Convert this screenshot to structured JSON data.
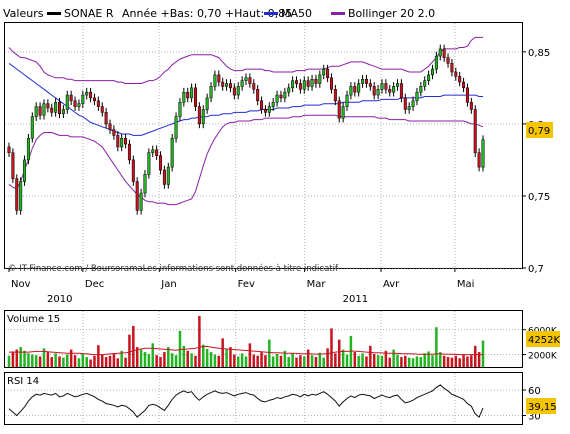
{
  "colors": {
    "up": "#22b422",
    "down": "#c8141e",
    "ma50": "#1f2dd2",
    "bollinger": "#8a1fa8",
    "volume_avg": "#c8141e",
    "rsi": "#111111",
    "grid": "#b4b4b4",
    "last_badge": "#f5c400"
  },
  "header": {
    "prefix": "Valeurs",
    "security": "SONAE R",
    "stats": "Année +Bas: 0,70 +Haut: 0,85",
    "legend_ma": "MA50",
    "legend_bollinger": "Bollinger 20 2.0"
  },
  "credit": "© IT-Finance.com / BoursoramaLes informations sont données à titre indicatif",
  "months": [
    {
      "label": "Nov",
      "year": "2010",
      "day": 0
    },
    {
      "label": "Dec",
      "year": "",
      "day": 30
    },
    {
      "label": "Jan",
      "year": "",
      "day": 61
    },
    {
      "label": "Fev",
      "year": "",
      "day": 92
    },
    {
      "label": "Mar",
      "year": "2011",
      "day": 120
    },
    {
      "label": "Avr",
      "year": "",
      "day": 151
    },
    {
      "label": "Mai",
      "year": "",
      "day": 181
    }
  ],
  "chart_data": [
    {
      "type": "candlestick",
      "title": "SONAE R",
      "subtitle": "Année +Bas: 0,70 +Haut: 0,85",
      "x_range_days": [
        0,
        205
      ],
      "ylim": [
        0.7,
        0.87
      ],
      "y_ticks": [
        {
          "v": 0.85,
          "label": "0,85"
        },
        {
          "v": 0.8,
          "label": "0,8"
        },
        {
          "v": 0.75,
          "label": "0,75"
        },
        {
          "v": 0.7,
          "label": "0,7"
        }
      ],
      "last_value": {
        "v": 0.79,
        "label": "0,79"
      },
      "close": [
        0.78,
        0.762,
        0.74,
        0.76,
        0.775,
        0.79,
        0.805,
        0.812,
        0.806,
        0.814,
        0.811,
        0.808,
        0.815,
        0.807,
        0.81,
        0.82,
        0.816,
        0.812,
        0.814,
        0.82,
        0.822,
        0.818,
        0.816,
        0.812,
        0.808,
        0.8,
        0.796,
        0.792,
        0.784,
        0.79,
        0.786,
        0.775,
        0.76,
        0.74,
        0.752,
        0.765,
        0.78,
        0.782,
        0.778,
        0.768,
        0.758,
        0.77,
        0.79,
        0.805,
        0.815,
        0.822,
        0.818,
        0.825,
        0.812,
        0.8,
        0.81,
        0.818,
        0.826,
        0.834,
        0.829,
        0.826,
        0.828,
        0.825,
        0.82,
        0.826,
        0.83,
        0.832,
        0.828,
        0.824,
        0.816,
        0.81,
        0.808,
        0.812,
        0.815,
        0.82,
        0.818,
        0.822,
        0.825,
        0.83,
        0.828,
        0.824,
        0.83,
        0.826,
        0.831,
        0.828,
        0.834,
        0.838,
        0.832,
        0.824,
        0.816,
        0.804,
        0.812,
        0.82,
        0.826,
        0.822,
        0.828,
        0.831,
        0.828,
        0.826,
        0.82,
        0.824,
        0.828,
        0.824,
        0.822,
        0.826,
        0.828,
        0.818,
        0.81,
        0.812,
        0.816,
        0.822,
        0.826,
        0.83,
        0.834,
        0.838,
        0.847,
        0.852,
        0.846,
        0.842,
        0.836,
        0.833,
        0.829,
        0.825,
        0.815,
        0.81,
        0.78,
        0.77,
        0.789
      ],
      "ma50": [
        0.842,
        0.84,
        0.838,
        0.836,
        0.834,
        0.832,
        0.83,
        0.828,
        0.826,
        0.824,
        0.822,
        0.82,
        0.818,
        0.816,
        0.814,
        0.812,
        0.81,
        0.808,
        0.806,
        0.805,
        0.803,
        0.801,
        0.8,
        0.799,
        0.798,
        0.797,
        0.796,
        0.795,
        0.794,
        0.793,
        0.793,
        0.793,
        0.792,
        0.792,
        0.792,
        0.793,
        0.794,
        0.795,
        0.796,
        0.797,
        0.798,
        0.799,
        0.8,
        0.801,
        0.802,
        0.803,
        0.803,
        0.804,
        0.804,
        0.805,
        0.805,
        0.805,
        0.806,
        0.806,
        0.806,
        0.807,
        0.807,
        0.807,
        0.808,
        0.808,
        0.808,
        0.808,
        0.809,
        0.809,
        0.809,
        0.81,
        0.81,
        0.81,
        0.81,
        0.811,
        0.811,
        0.811,
        0.811,
        0.812,
        0.812,
        0.812,
        0.813,
        0.813,
        0.813,
        0.813,
        0.813,
        0.814,
        0.814,
        0.814,
        0.814,
        0.814,
        0.815,
        0.815,
        0.815,
        0.815,
        0.815,
        0.816,
        0.816,
        0.816,
        0.816,
        0.816,
        0.817,
        0.817,
        0.817,
        0.817,
        0.817,
        0.818,
        0.818,
        0.818,
        0.818,
        0.818,
        0.818,
        0.819,
        0.819,
        0.819,
        0.819,
        0.819,
        0.82,
        0.82,
        0.82,
        0.82,
        0.82,
        0.82,
        0.82,
        0.82,
        0.82,
        0.819,
        0.819
      ],
      "boll_upper": [
        0.853,
        0.85,
        0.848,
        0.846,
        0.846,
        0.845,
        0.844,
        0.843,
        0.84,
        0.836,
        0.834,
        0.833,
        0.832,
        0.832,
        0.832,
        0.831,
        0.831,
        0.83,
        0.83,
        0.83,
        0.83,
        0.83,
        0.83,
        0.83,
        0.83,
        0.83,
        0.83,
        0.83,
        0.829,
        0.829,
        0.828,
        0.828,
        0.828,
        0.828,
        0.828,
        0.829,
        0.83,
        0.83,
        0.831,
        0.833,
        0.836,
        0.838,
        0.841,
        0.843,
        0.845,
        0.846,
        0.847,
        0.848,
        0.848,
        0.848,
        0.848,
        0.848,
        0.848,
        0.847,
        0.846,
        0.843,
        0.84,
        0.838,
        0.837,
        0.837,
        0.837,
        0.838,
        0.838,
        0.838,
        0.838,
        0.838,
        0.837,
        0.837,
        0.836,
        0.836,
        0.836,
        0.836,
        0.836,
        0.836,
        0.837,
        0.837,
        0.837,
        0.838,
        0.838,
        0.838,
        0.838,
        0.838,
        0.839,
        0.84,
        0.84,
        0.84,
        0.841,
        0.842,
        0.843,
        0.843,
        0.843,
        0.843,
        0.842,
        0.841,
        0.84,
        0.839,
        0.838,
        0.838,
        0.838,
        0.838,
        0.838,
        0.838,
        0.837,
        0.836,
        0.836,
        0.836,
        0.836,
        0.838,
        0.84,
        0.843,
        0.846,
        0.85,
        0.852,
        0.852,
        0.852,
        0.852,
        0.853,
        0.853,
        0.854,
        0.858,
        0.86,
        0.86,
        0.86
      ],
      "boll_lower": [
        0.758,
        0.756,
        0.755,
        0.76,
        0.768,
        0.775,
        0.783,
        0.789,
        0.792,
        0.794,
        0.794,
        0.794,
        0.793,
        0.792,
        0.792,
        0.792,
        0.791,
        0.791,
        0.791,
        0.791,
        0.79,
        0.789,
        0.788,
        0.786,
        0.784,
        0.78,
        0.776,
        0.772,
        0.768,
        0.764,
        0.76,
        0.757,
        0.754,
        0.751,
        0.749,
        0.747,
        0.746,
        0.746,
        0.745,
        0.745,
        0.745,
        0.744,
        0.744,
        0.744,
        0.745,
        0.746,
        0.747,
        0.748,
        0.753,
        0.762,
        0.771,
        0.779,
        0.785,
        0.79,
        0.794,
        0.798,
        0.8,
        0.801,
        0.801,
        0.802,
        0.802,
        0.802,
        0.802,
        0.803,
        0.803,
        0.803,
        0.804,
        0.804,
        0.804,
        0.804,
        0.804,
        0.804,
        0.804,
        0.805,
        0.805,
        0.805,
        0.806,
        0.806,
        0.806,
        0.806,
        0.806,
        0.806,
        0.806,
        0.806,
        0.806,
        0.805,
        0.805,
        0.805,
        0.805,
        0.805,
        0.805,
        0.805,
        0.805,
        0.805,
        0.805,
        0.804,
        0.804,
        0.804,
        0.803,
        0.803,
        0.803,
        0.803,
        0.803,
        0.802,
        0.802,
        0.802,
        0.802,
        0.802,
        0.802,
        0.802,
        0.802,
        0.802,
        0.802,
        0.802,
        0.802,
        0.802,
        0.802,
        0.802,
        0.801,
        0.8,
        0.8,
        0.799,
        0.798
      ]
    },
    {
      "type": "bar",
      "title": "Volume 15",
      "ylim": [
        0,
        9000
      ],
      "y_ticks": [
        {
          "v": 6000,
          "label": "6000K"
        },
        {
          "v": 2000,
          "label": "2000K"
        }
      ],
      "last_value": {
        "v": 4252,
        "label": "4252K"
      },
      "values": [
        1800,
        2500,
        2800,
        3200,
        2600,
        2200,
        2000,
        1900,
        1700,
        3000,
        2400,
        1600,
        2200,
        1700,
        1500,
        2000,
        2800,
        1900,
        1400,
        2200,
        1600,
        1200,
        1800,
        3500,
        2000,
        1600,
        1800,
        2200,
        1400,
        2600,
        1500,
        5200,
        6600,
        3200,
        2800,
        2400,
        2100,
        3800,
        1900,
        1600,
        2400,
        3200,
        2200,
        1900,
        5800,
        3400,
        2600,
        2200,
        1800,
        8200,
        3600,
        2900,
        2400,
        2000,
        1800,
        4600,
        2800,
        3200,
        2000,
        1700,
        2200,
        1700,
        3800,
        2000,
        1800,
        2400,
        1900,
        4400,
        1700,
        2100,
        1800,
        2600,
        1600,
        2200,
        1500,
        1900,
        1700,
        2800,
        1900,
        1600,
        2300,
        1500,
        3000,
        6200,
        2200,
        4400,
        2800,
        2000,
        5000,
        2400,
        1800,
        2200,
        1700,
        3400,
        2100,
        1900,
        1800,
        2600,
        1500,
        2800,
        2000,
        1600,
        1800,
        1500,
        1400,
        1700,
        1600,
        2200,
        2500,
        1900,
        6400,
        2400,
        1800,
        1600,
        1500,
        1800,
        1400,
        2000,
        1700,
        1900,
        3400,
        2400,
        4252
      ],
      "average": [
        2400,
        2400,
        2400,
        2400,
        2400,
        2400,
        2450,
        2500,
        2500,
        2500,
        2450,
        2400,
        2350,
        2300,
        2250,
        2200,
        2200,
        2200,
        2200,
        2150,
        2100,
        2050,
        2000,
        2000,
        2000,
        2050,
        2100,
        2150,
        2200,
        2250,
        2300,
        2400,
        2600,
        2800,
        2900,
        3000,
        3000,
        3000,
        2950,
        2900,
        2850,
        2800,
        2750,
        2700,
        2800,
        2850,
        2900,
        2950,
        3000,
        3200,
        3300,
        3300,
        3200,
        3100,
        3000,
        2950,
        2900,
        2850,
        2800,
        2750,
        2700,
        2650,
        2600,
        2550,
        2500,
        2450,
        2400,
        2350,
        2300,
        2280,
        2260,
        2240,
        2220,
        2200,
        2180,
        2160,
        2140,
        2120,
        2100,
        2080,
        2080,
        2100,
        2150,
        2300,
        2400,
        2450,
        2500,
        2500,
        2550,
        2550,
        2500,
        2450,
        2400,
        2350,
        2300,
        2280,
        2260,
        2240,
        2220,
        2200,
        2180,
        2160,
        2140,
        2120,
        2100,
        2080,
        2060,
        2050,
        2050,
        2050,
        2100,
        2100,
        2080,
        2060,
        2040,
        2020,
        2000,
        2000,
        2000,
        2000,
        2000,
        2000,
        2000
      ]
    },
    {
      "type": "line",
      "title": "RSI 14",
      "ylim": [
        20,
        80
      ],
      "y_ticks": [
        {
          "v": 60,
          "label": "60"
        },
        {
          "v": 30,
          "label": "30"
        }
      ],
      "last_value": {
        "v": 39.15,
        "label": "39,15"
      },
      "values": [
        38,
        34,
        30,
        35,
        40,
        47,
        52,
        55,
        54,
        56,
        55,
        54,
        56,
        52,
        53,
        56,
        54,
        52,
        53,
        55,
        56,
        54,
        52,
        49,
        47,
        44,
        43,
        42,
        40,
        42,
        41,
        38,
        34,
        28,
        32,
        36,
        42,
        43,
        42,
        39,
        36,
        42,
        49,
        54,
        57,
        59,
        57,
        58,
        52,
        48,
        52,
        55,
        57,
        59,
        57,
        56,
        57,
        55,
        53,
        55,
        56,
        57,
        55,
        54,
        50,
        47,
        46,
        48,
        49,
        51,
        50,
        52,
        53,
        55,
        54,
        52,
        55,
        53,
        55,
        54,
        56,
        58,
        55,
        51,
        47,
        41,
        46,
        50,
        53,
        51,
        54,
        55,
        54,
        53,
        50,
        52,
        54,
        52,
        51,
        53,
        54,
        49,
        45,
        46,
        48,
        51,
        53,
        55,
        57,
        59,
        63,
        66,
        62,
        59,
        55,
        53,
        51,
        49,
        44,
        41,
        32,
        28,
        39
      ]
    }
  ]
}
